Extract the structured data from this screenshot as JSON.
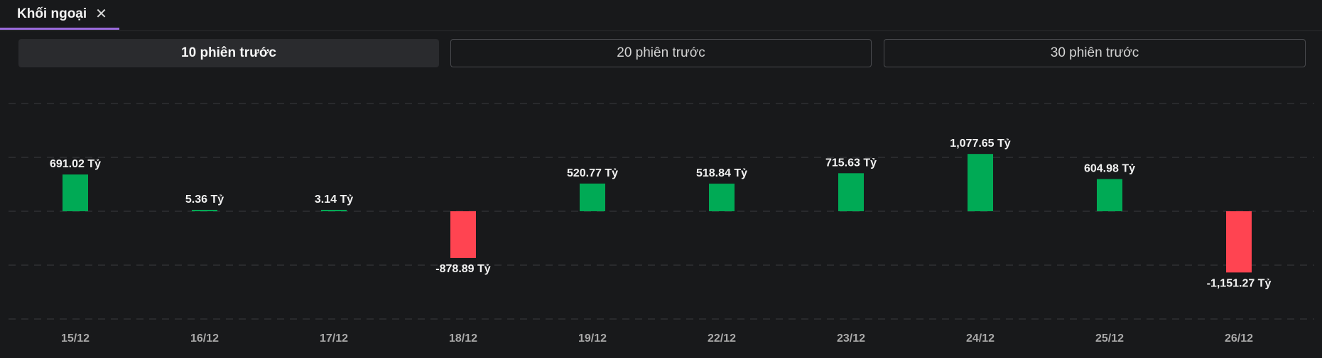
{
  "tab": {
    "label": "Khối ngoại",
    "close_icon": "close-icon"
  },
  "range_buttons": [
    {
      "label": "10 phiên trước",
      "active": true
    },
    {
      "label": "20 phiên trước",
      "active": false
    },
    {
      "label": "30 phiên trước",
      "active": false
    }
  ],
  "colors": {
    "positive": "#00aa55",
    "negative": "#ff4451",
    "accent": "#9b6bdc"
  },
  "chart_data": {
    "type": "bar",
    "categories": [
      "15/12",
      "16/12",
      "17/12",
      "18/12",
      "19/12",
      "22/12",
      "23/12",
      "24/12",
      "25/12",
      "26/12"
    ],
    "values": [
      691.02,
      5.36,
      3.14,
      -878.89,
      520.77,
      518.84,
      715.63,
      1077.65,
      604.98,
      -1151.27
    ],
    "value_labels": [
      "691.02 Tỷ",
      "5.36 Tỷ",
      "3.14 Tỷ",
      "-878.89 Tỷ",
      "520.77 Tỷ",
      "518.84 Tỷ",
      "715.63 Tỷ",
      "1,077.65 Tỷ",
      "604.98 Tỷ",
      "-1,151.27 Tỷ"
    ],
    "unit": "Tỷ",
    "ylim": [
      -2000,
      2000
    ],
    "grid": true,
    "grid_style": "dashed",
    "legend": "none"
  }
}
